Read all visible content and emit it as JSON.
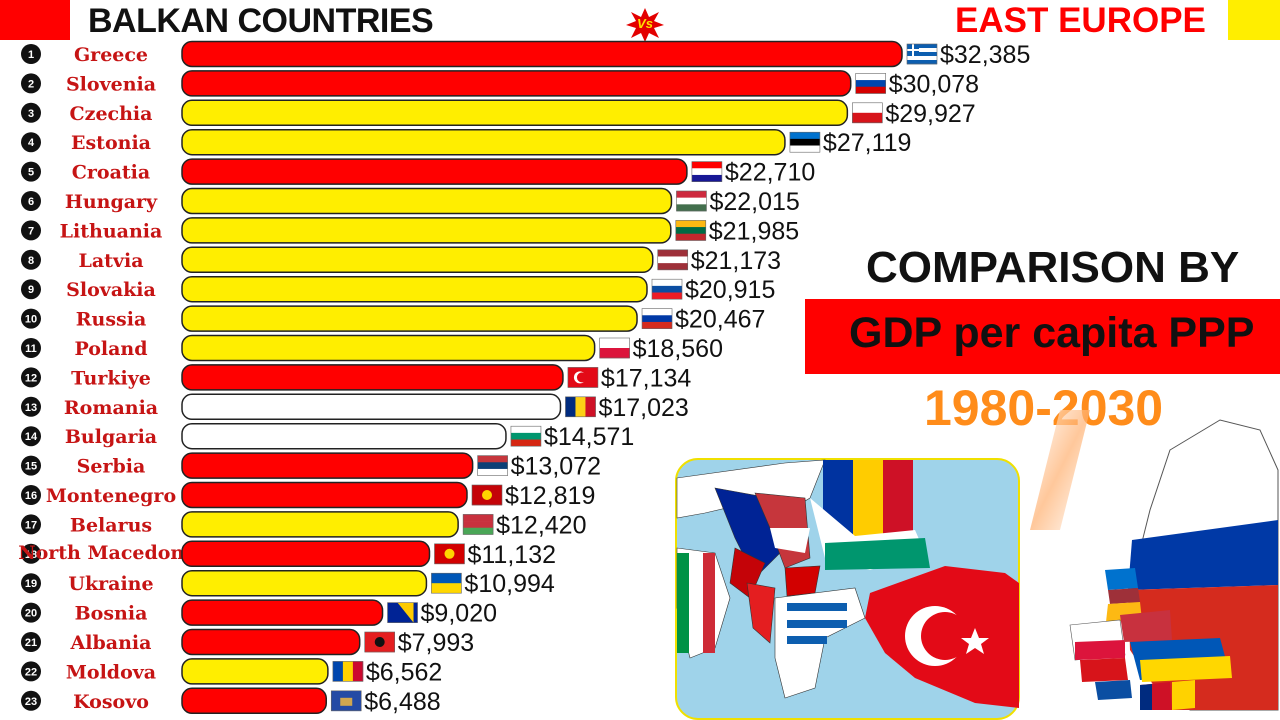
{
  "header": {
    "left_title": "BALKAN COUNTRIES",
    "vs_badge": "Vs",
    "right_title": "EAST EUROPE"
  },
  "panel": {
    "comparison_title": "COMPARISON BY",
    "metric": "GDP per capita PPP",
    "years": "1980-2030"
  },
  "colors": {
    "balkan": "#ff0000",
    "east_europe": "#ffee00",
    "other": "#ffffff",
    "label": "#c61414",
    "year": "#ff8c1a"
  },
  "chart_data": {
    "type": "bar",
    "orientation": "horizontal",
    "title": "",
    "xlabel": "",
    "ylabel": "",
    "xlim": [
      0,
      32385
    ],
    "grid": false,
    "categories": [
      "Greece",
      "Slovenia",
      "Czechia",
      "Estonia",
      "Croatia",
      "Hungary",
      "Lithuania",
      "Latvia",
      "Slovakia",
      "Russia",
      "Poland",
      "Turkiye",
      "Romania",
      "Bulgaria",
      "Serbia",
      "Montenegro",
      "Belarus",
      "North Macedonia",
      "Ukraine",
      "Bosnia",
      "Albania",
      "Moldova",
      "Kosovo"
    ],
    "ranks": [
      "1",
      "2",
      "3",
      "4",
      "5",
      "6",
      "7",
      "8",
      "9",
      "10",
      "11",
      "12",
      "13",
      "14",
      "15",
      "16",
      "17",
      "18",
      "19",
      "20",
      "21",
      "22",
      "23"
    ],
    "values": [
      32385,
      30078,
      29927,
      27119,
      22710,
      22015,
      21985,
      21173,
      20915,
      20467,
      18560,
      17134,
      17023,
      14571,
      13072,
      12819,
      12420,
      11132,
      10994,
      9020,
      7993,
      6562,
      6488
    ],
    "value_labels": [
      "$32,385",
      "$30,078",
      "$29,927",
      "$27,119",
      "$22,710",
      "$22,015",
      "$21,985",
      "$21,173",
      "$20,915",
      "$20,467",
      "$18,560",
      "$17,134",
      "$17,023",
      "$14,571",
      "$13,072",
      "$12,819",
      "$12,420",
      "$11,132",
      "$10,994",
      "$9,020",
      "$7,993",
      "$6,562",
      "$6,488"
    ],
    "groups": [
      "balkan",
      "balkan",
      "east_europe",
      "east_europe",
      "balkan",
      "east_europe",
      "east_europe",
      "east_europe",
      "east_europe",
      "east_europe",
      "east_europe",
      "balkan",
      "other",
      "other",
      "balkan",
      "balkan",
      "east_europe",
      "balkan",
      "east_europe",
      "balkan",
      "balkan",
      "east_europe",
      "balkan"
    ],
    "flags": [
      {
        "icon": "greece-flag-icon",
        "stripes": [
          "#0d5eaf",
          "#ffffff",
          "#0d5eaf",
          "#ffffff",
          "#0d5eaf"
        ],
        "dir": "h"
      },
      {
        "icon": "slovenia-flag-icon",
        "stripes": [
          "#ffffff",
          "#0046ae",
          "#d50000"
        ],
        "dir": "h"
      },
      {
        "icon": "czechia-flag-icon",
        "stripes": [
          "#ffffff",
          "#d7141a"
        ],
        "dir": "h"
      },
      {
        "icon": "estonia-flag-icon",
        "stripes": [
          "#0072ce",
          "#000000",
          "#ffffff"
        ],
        "dir": "h"
      },
      {
        "icon": "croatia-flag-icon",
        "stripes": [
          "#ff0000",
          "#ffffff",
          "#171796"
        ],
        "dir": "h"
      },
      {
        "icon": "hungary-flag-icon",
        "stripes": [
          "#cd2a3e",
          "#ffffff",
          "#436f4d"
        ],
        "dir": "h"
      },
      {
        "icon": "lithuania-flag-icon",
        "stripes": [
          "#fdb913",
          "#006a44",
          "#c1272d"
        ],
        "dir": "h"
      },
      {
        "icon": "latvia-flag-icon",
        "stripes": [
          "#9e3039",
          "#ffffff",
          "#9e3039"
        ],
        "dir": "h"
      },
      {
        "icon": "slovakia-flag-icon",
        "stripes": [
          "#ffffff",
          "#0b4ea2",
          "#ee1c25"
        ],
        "dir": "h"
      },
      {
        "icon": "russia-flag-icon",
        "stripes": [
          "#ffffff",
          "#0039a6",
          "#d52b1e"
        ],
        "dir": "h"
      },
      {
        "icon": "poland-flag-icon",
        "stripes": [
          "#ffffff",
          "#dc143c"
        ],
        "dir": "h"
      },
      {
        "icon": "turkiye-flag-icon",
        "stripes": [
          "#e30a17"
        ],
        "dir": "h"
      },
      {
        "icon": "romania-flag-icon",
        "stripes": [
          "#002b7f",
          "#fcd116",
          "#ce1126"
        ],
        "dir": "v"
      },
      {
        "icon": "bulgaria-flag-icon",
        "stripes": [
          "#ffffff",
          "#00966e",
          "#d62612"
        ],
        "dir": "h"
      },
      {
        "icon": "serbia-flag-icon",
        "stripes": [
          "#c6363c",
          "#0c4076",
          "#ffffff"
        ],
        "dir": "h"
      },
      {
        "icon": "montenegro-flag-icon",
        "stripes": [
          "#c40308"
        ],
        "dir": "h"
      },
      {
        "icon": "belarus-flag-icon",
        "stripes": [
          "#c8313e",
          "#c8313e",
          "#4aa657"
        ],
        "dir": "h"
      },
      {
        "icon": "north-macedonia-flag-icon",
        "stripes": [
          "#d20000"
        ],
        "dir": "h"
      },
      {
        "icon": "ukraine-flag-icon",
        "stripes": [
          "#0057b7",
          "#ffd700"
        ],
        "dir": "h"
      },
      {
        "icon": "bosnia-flag-icon",
        "stripes": [
          "#002395"
        ],
        "dir": "h"
      },
      {
        "icon": "albania-flag-icon",
        "stripes": [
          "#e41e20"
        ],
        "dir": "h"
      },
      {
        "icon": "moldova-flag-icon",
        "stripes": [
          "#0046ae",
          "#ffd200",
          "#cc092f"
        ],
        "dir": "v"
      },
      {
        "icon": "kosovo-flag-icon",
        "stripes": [
          "#244aa5"
        ],
        "dir": "h"
      }
    ]
  }
}
